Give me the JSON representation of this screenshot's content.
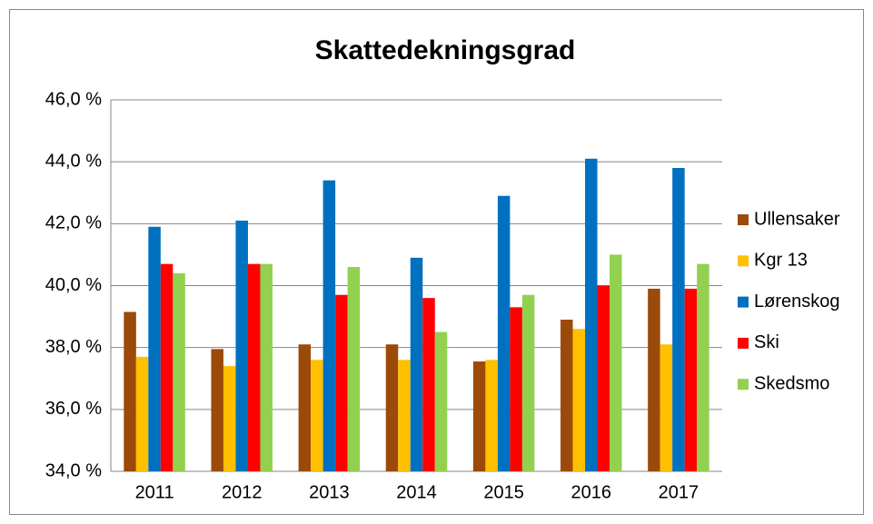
{
  "chart_data": {
    "type": "bar",
    "title": "Skattedekningsgrad",
    "categories": [
      "2011",
      "2012",
      "2013",
      "2014",
      "2015",
      "2016",
      "2017"
    ],
    "series": [
      {
        "name": "Ullensaker",
        "color": "#9c4a09",
        "values": [
          39.15,
          37.95,
          38.1,
          38.1,
          37.55,
          38.9,
          39.9
        ]
      },
      {
        "name": "Kgr 13",
        "color": "#ffc000",
        "values": [
          37.7,
          37.4,
          37.6,
          37.6,
          37.6,
          38.6,
          38.1
        ]
      },
      {
        "name": "Lørenskog",
        "color": "#0070c0",
        "values": [
          41.9,
          42.1,
          43.4,
          40.9,
          42.9,
          44.1,
          43.8
        ]
      },
      {
        "name": "Ski",
        "color": "#ff0000",
        "values": [
          40.7,
          40.7,
          39.7,
          39.6,
          39.3,
          40.0,
          39.9
        ]
      },
      {
        "name": "Skedsmo",
        "color": "#92d050",
        "values": [
          40.4,
          40.7,
          40.6,
          38.5,
          39.7,
          41.0,
          40.7
        ]
      }
    ],
    "ylim": [
      34,
      46
    ],
    "yticks": [
      {
        "value": 34,
        "label": "34,0 %"
      },
      {
        "value": 36,
        "label": "36,0 %"
      },
      {
        "value": 38,
        "label": "38,0 %"
      },
      {
        "value": 40,
        "label": "40,0 %"
      },
      {
        "value": 42,
        "label": "42,0 %"
      },
      {
        "value": 44,
        "label": "44,0 %"
      },
      {
        "value": 46,
        "label": "46,0 %"
      }
    ],
    "grid": true,
    "legend": "right"
  }
}
